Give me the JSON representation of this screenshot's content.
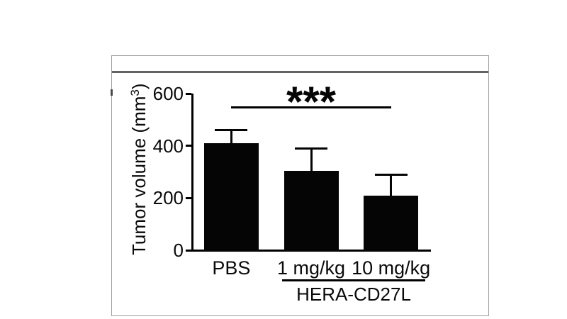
{
  "figure": {
    "ylabel": {
      "text": "Tumor volume (mm",
      "sup": "3",
      "end": ")"
    }
  },
  "chart_data": {
    "type": "bar",
    "title": "",
    "categories": [
      "PBS",
      "1 mg/kg",
      "10 mg/kg"
    ],
    "values": [
      410,
      305,
      210
    ],
    "errors_upper": [
      50,
      85,
      80
    ],
    "bar_color": "#050505",
    "xlabel": "",
    "ylabel": "Tumor volume (mm³)",
    "ylim": [
      0,
      600
    ],
    "yticks": [
      0,
      200,
      400,
      600
    ],
    "grid": false,
    "legend": "none",
    "significance": {
      "label": "***",
      "between": [
        "PBS",
        "10 mg/kg"
      ]
    },
    "group": {
      "label": "HERA-CD27L",
      "spans": [
        "1 mg/kg",
        "10 mg/kg"
      ]
    }
  }
}
